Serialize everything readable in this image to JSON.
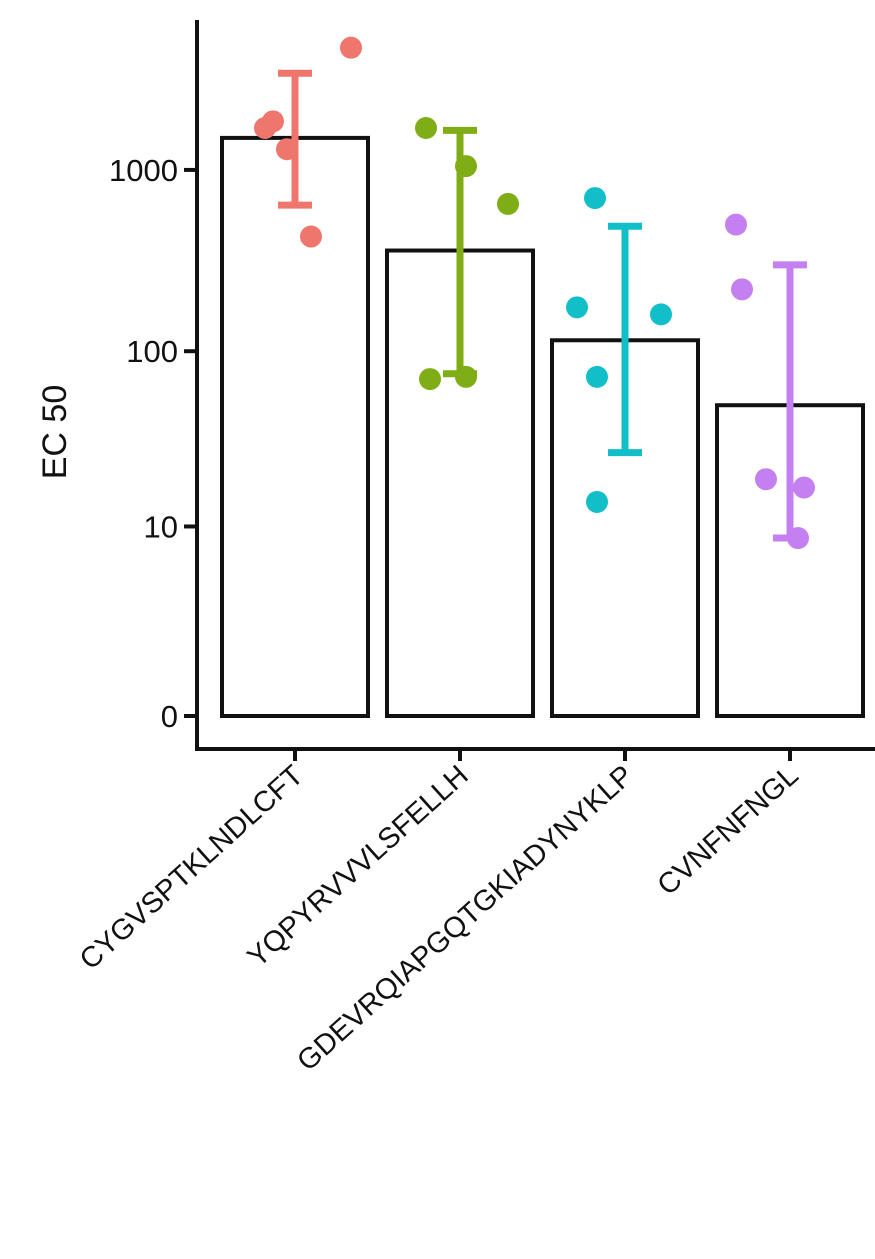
{
  "chart_data": {
    "type": "bar",
    "ylabel": "EC 50",
    "xlabel": "",
    "y_scale": "pseudo-log",
    "yticks": [
      {
        "value": 0,
        "label": "0"
      },
      {
        "value": 10,
        "label": "10"
      },
      {
        "value": 100,
        "label": "100"
      },
      {
        "value": 1000,
        "label": "1000"
      }
    ],
    "ylim": [
      0,
      6000
    ],
    "grid": false,
    "legend": "none",
    "categories": [
      {
        "label": "CYGVSPTKLNDLCFT",
        "color": "#ef766c",
        "bar": 1500,
        "err_low": 640,
        "err_high": 3400,
        "points": [
          1700,
          1850,
          1300,
          430,
          4700
        ]
      },
      {
        "label": "YQPYRVVVLSFELLH",
        "color": "#7fad16",
        "bar": 360,
        "err_low": 75,
        "err_high": 1650,
        "points": [
          1700,
          1050,
          650,
          70,
          72
        ]
      },
      {
        "label": "GDEVRQIAPGQTGKIADYNYKLP",
        "color": "#12bfc8",
        "bar": 115,
        "err_low": 27,
        "err_high": 490,
        "points": [
          700,
          175,
          160,
          72,
          14
        ]
      },
      {
        "label": "CVNFNFNGL",
        "color": "#c47ff0",
        "bar": 50,
        "err_low": 8.5,
        "err_high": 300,
        "points": [
          500,
          220,
          19,
          17,
          8.5
        ]
      }
    ]
  }
}
